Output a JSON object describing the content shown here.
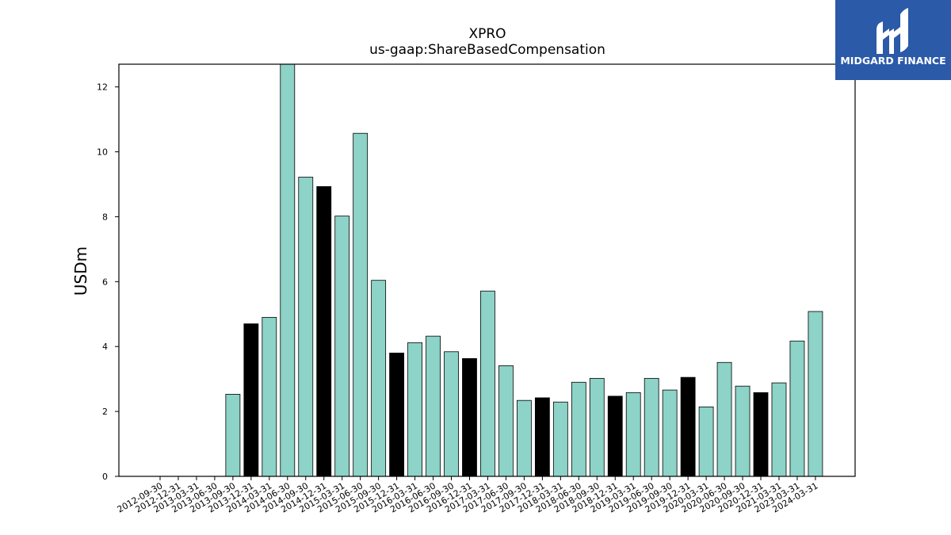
{
  "chart_data": {
    "type": "bar",
    "title": "XPRO",
    "subtitle": "us-gaap:ShareBasedCompensation",
    "xlabel": "",
    "ylabel": "USDm",
    "ylim": [
      0,
      12.7
    ],
    "yticks": [
      0,
      2,
      4,
      6,
      8,
      10,
      12
    ],
    "grid": false,
    "legend": "none",
    "colors": {
      "teal": "#8dd3c7",
      "black": "#000000",
      "edge": "#000000"
    },
    "categories": [
      "2012-09-30",
      "2012-12-31",
      "2013-03-31",
      "2013-06-30",
      "2013-09-30",
      "2013-12-31",
      "2014-03-31",
      "2014-06-30",
      "2014-09-30",
      "2014-12-31",
      "2015-03-31",
      "2015-06-30",
      "2015-09-30",
      "2015-12-31",
      "2016-03-31",
      "2016-06-30",
      "2016-09-30",
      "2016-12-31",
      "2017-03-31",
      "2017-06-30",
      "2017-09-30",
      "2017-12-31",
      "2018-03-31",
      "2018-06-30",
      "2018-09-30",
      "2018-12-31",
      "2019-03-31",
      "2019-06-30",
      "2019-09-30",
      "2019-12-31",
      "2020-03-31",
      "2020-06-30",
      "2020-09-30",
      "2020-12-31",
      "2021-03-31",
      "2023-03-31",
      "2024-03-31"
    ],
    "values": [
      0,
      0,
      0,
      0,
      2.53,
      4.7,
      4.9,
      12.7,
      9.22,
      8.93,
      8.02,
      10.57,
      6.04,
      3.8,
      4.12,
      4.32,
      3.84,
      3.63,
      5.71,
      3.41,
      2.34,
      2.42,
      2.29,
      2.9,
      3.02,
      2.47,
      2.58,
      3.02,
      2.66,
      3.05,
      2.14,
      3.51,
      2.78,
      2.58,
      2.88,
      4.17,
      5.08
    ],
    "bar_colors": [
      "teal",
      "teal",
      "teal",
      "teal",
      "teal",
      "black",
      "teal",
      "teal",
      "teal",
      "black",
      "teal",
      "teal",
      "teal",
      "black",
      "teal",
      "teal",
      "teal",
      "black",
      "teal",
      "teal",
      "teal",
      "black",
      "teal",
      "teal",
      "teal",
      "black",
      "teal",
      "teal",
      "teal",
      "black",
      "teal",
      "teal",
      "teal",
      "black",
      "teal",
      "teal",
      "teal"
    ]
  },
  "logo": {
    "text": "MIDGARD FINANCE",
    "background": "#2a5aa8"
  }
}
